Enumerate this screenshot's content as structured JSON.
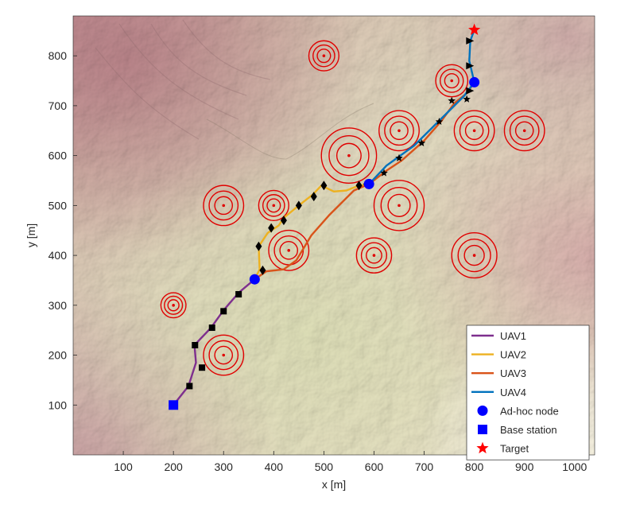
{
  "chart_data": {
    "type": "line",
    "xlabel": "x [m]",
    "ylabel": "y [m]",
    "xlim": [
      0,
      1040
    ],
    "ylim": [
      0,
      880
    ],
    "xticks": [
      100,
      200,
      300,
      400,
      500,
      600,
      700,
      800,
      900,
      1000
    ],
    "yticks": [
      100,
      200,
      300,
      400,
      500,
      600,
      700,
      800
    ],
    "grid": false,
    "legend_position": "bottom-right",
    "background": "terrain-shaded-relief",
    "colors": {
      "uav1": "#7E2F8E",
      "uav2": "#EDB120",
      "uav3": "#D95319",
      "uav4": "#0072BD",
      "adhoc": "#0000FF",
      "base": "#0000FF",
      "target": "#FF0000",
      "obstacle": "#E00000"
    },
    "legend": [
      {
        "label": "UAV1",
        "kind": "line",
        "color": "#7E2F8E"
      },
      {
        "label": "UAV2",
        "kind": "line",
        "color": "#EDB120"
      },
      {
        "label": "UAV3",
        "kind": "line",
        "color": "#D95319"
      },
      {
        "label": "UAV4",
        "kind": "line",
        "color": "#0072BD"
      },
      {
        "label": "Ad-hoc node",
        "kind": "circle",
        "color": "#0000FF"
      },
      {
        "label": "Base station",
        "kind": "square",
        "color": "#0000FF"
      },
      {
        "label": "Target",
        "kind": "star",
        "color": "#FF0000"
      }
    ],
    "series": [
      {
        "name": "UAV1",
        "color": "#7E2F8E",
        "points": [
          [
            200,
            100
          ],
          [
            230,
            138
          ],
          [
            245,
            185
          ],
          [
            242,
            220
          ],
          [
            275,
            255
          ],
          [
            300,
            290
          ],
          [
            330,
            325
          ],
          [
            362,
            352
          ]
        ]
      },
      {
        "name": "UAV2",
        "color": "#EDB120",
        "points": [
          [
            362,
            352
          ],
          [
            372,
            372
          ],
          [
            370,
            418
          ],
          [
            388,
            445
          ],
          [
            410,
            460
          ],
          [
            420,
            475
          ],
          [
            450,
            500
          ],
          [
            478,
            522
          ],
          [
            495,
            540
          ],
          [
            520,
            528
          ],
          [
            545,
            530
          ],
          [
            570,
            540
          ],
          [
            590,
            543
          ]
        ]
      },
      {
        "name": "UAV3",
        "color": "#D95319",
        "points": [
          [
            362,
            352
          ],
          [
            385,
            368
          ],
          [
            420,
            372
          ],
          [
            445,
            390
          ],
          [
            475,
            440
          ],
          [
            510,
            480
          ],
          [
            560,
            530
          ],
          [
            590,
            543
          ],
          [
            625,
            570
          ],
          [
            655,
            590
          ],
          [
            700,
            630
          ],
          [
            735,
            670
          ],
          [
            760,
            705
          ],
          [
            785,
            725
          ],
          [
            800,
            747
          ]
        ]
      },
      {
        "name": "UAV4",
        "color": "#0072BD",
        "points": [
          [
            590,
            543
          ],
          [
            625,
            580
          ],
          [
            680,
            620
          ],
          [
            740,
            680
          ],
          [
            780,
            720
          ],
          [
            800,
            747
          ],
          [
            790,
            790
          ],
          [
            792,
            830
          ],
          [
            800,
            852
          ]
        ]
      }
    ],
    "waypoints": {
      "uav1": [
        [
          232,
          138
        ],
        [
          257,
          175
        ],
        [
          243,
          220
        ],
        [
          277,
          255
        ],
        [
          300,
          288
        ],
        [
          330,
          322
        ]
      ],
      "uav2": [
        [
          370,
          418
        ],
        [
          378,
          370
        ],
        [
          395,
          455
        ],
        [
          420,
          470
        ],
        [
          450,
          500
        ],
        [
          480,
          518
        ],
        [
          500,
          540
        ],
        [
          570,
          540
        ],
        [
          585,
          543
        ]
      ],
      "uav3": [
        [
          620,
          565
        ],
        [
          650,
          595
        ],
        [
          695,
          625
        ],
        [
          730,
          668
        ],
        [
          755,
          710
        ],
        [
          785,
          713
        ]
      ],
      "uav4": [
        [
          790,
          730
        ],
        [
          790,
          780
        ],
        [
          790,
          830
        ]
      ]
    },
    "adhoc_nodes": [
      [
        362,
        352
      ],
      [
        590,
        543
      ],
      [
        800,
        747
      ]
    ],
    "base_station": [
      200,
      100
    ],
    "target": [
      800,
      852
    ],
    "obstacles": [
      {
        "x": 500,
        "y": 800,
        "r": 30
      },
      {
        "x": 755,
        "y": 750,
        "r": 32
      },
      {
        "x": 650,
        "y": 650,
        "r": 40
      },
      {
        "x": 800,
        "y": 650,
        "r": 40
      },
      {
        "x": 900,
        "y": 650,
        "r": 40
      },
      {
        "x": 550,
        "y": 600,
        "r": 55
      },
      {
        "x": 300,
        "y": 500,
        "r": 40
      },
      {
        "x": 400,
        "y": 500,
        "r": 30
      },
      {
        "x": 650,
        "y": 500,
        "r": 50
      },
      {
        "x": 430,
        "y": 410,
        "r": 40
      },
      {
        "x": 600,
        "y": 400,
        "r": 35
      },
      {
        "x": 800,
        "y": 400,
        "r": 45
      },
      {
        "x": 200,
        "y": 300,
        "r": 25
      },
      {
        "x": 300,
        "y": 200,
        "r": 40
      }
    ]
  }
}
